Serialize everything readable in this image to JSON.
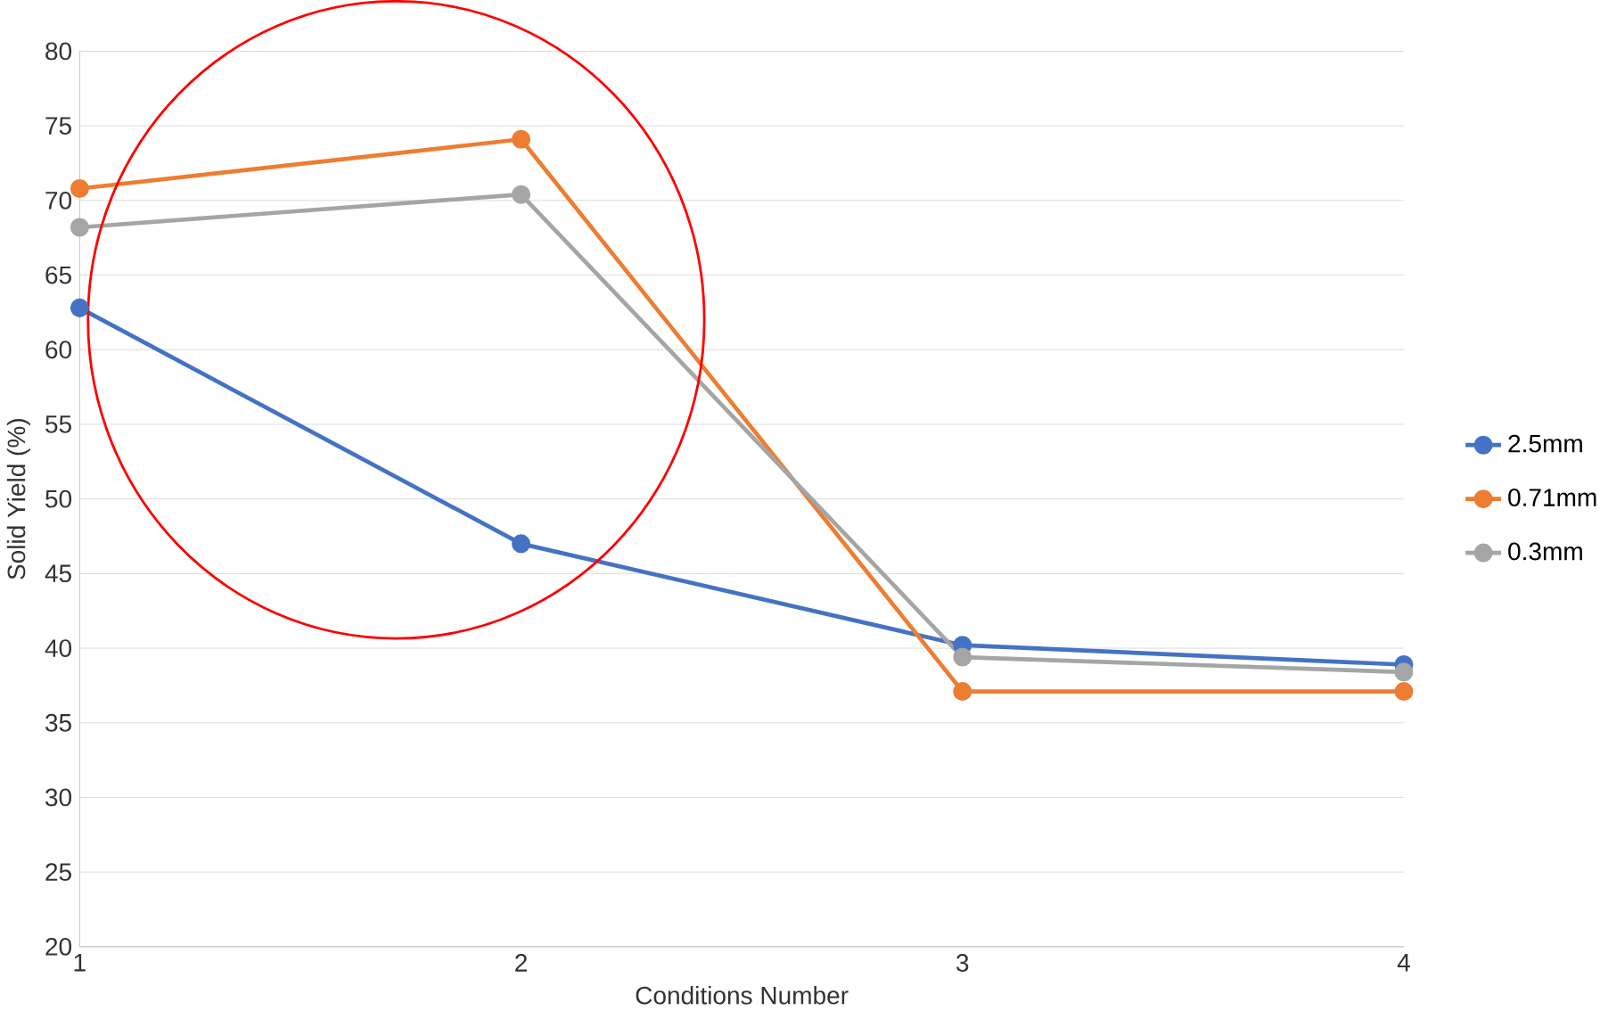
{
  "chart_data": {
    "type": "line",
    "xlabel": "Conditions Number",
    "ylabel": "Solid Yield (%)",
    "x": [
      1,
      2,
      3,
      4
    ],
    "series": [
      {
        "name": "2.5mm",
        "color": "#4472c4",
        "values": [
          62.8,
          47.0,
          40.2,
          38.9
        ]
      },
      {
        "name": "0.71mm",
        "color": "#ed7d31",
        "values": [
          70.8,
          74.1,
          37.1,
          37.1
        ]
      },
      {
        "name": "0.3mm",
        "color": "#a5a5a5",
        "values": [
          68.2,
          70.4,
          39.4,
          38.4
        ]
      }
    ],
    "xlim": [
      1,
      4
    ],
    "xticks": [
      1,
      2,
      3,
      4
    ],
    "ylim": [
      20,
      80
    ],
    "yticks": [
      20,
      25,
      30,
      35,
      40,
      45,
      50,
      55,
      60,
      65,
      70,
      75,
      80
    ],
    "grid": "y",
    "legend": "right",
    "marker": "circle",
    "line_style": "solid"
  }
}
